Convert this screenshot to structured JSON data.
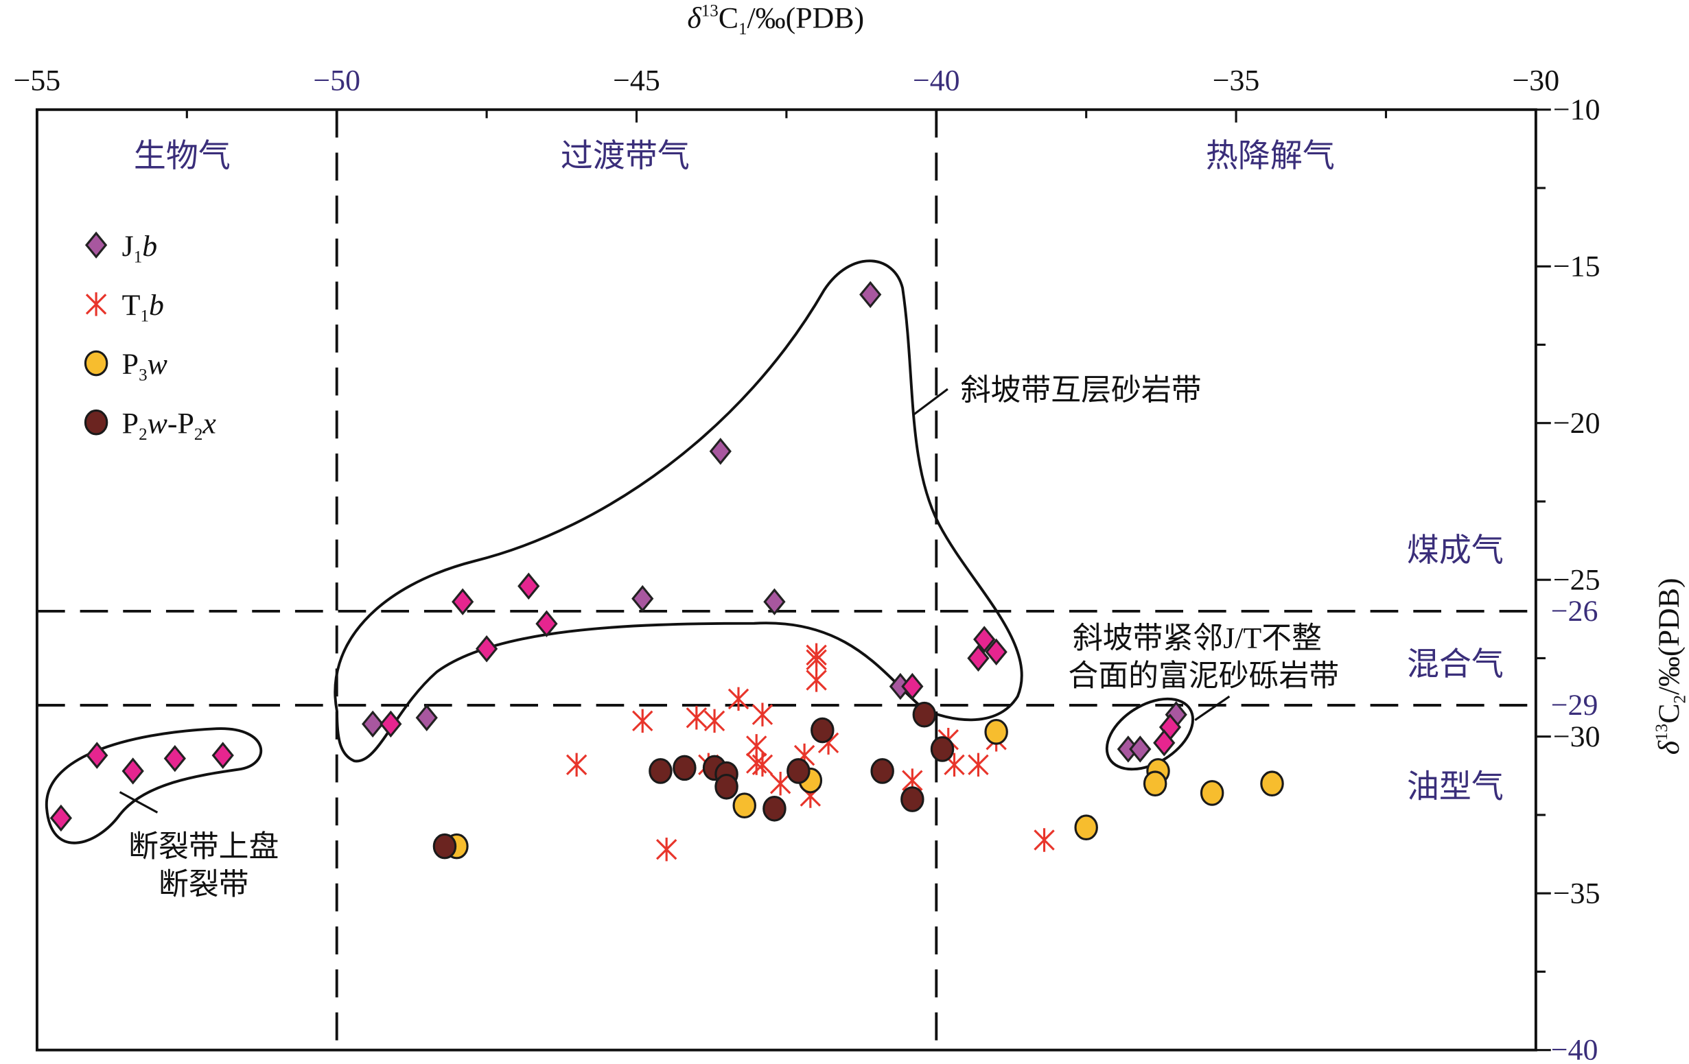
{
  "chart_data": {
    "type": "scatter",
    "xlabel": "δ13C1/‰(PDB)",
    "ylabel": "δ13C2/‰(PDB)",
    "xlim": [
      -55,
      -30
    ],
    "ylim": [
      -40,
      -10
    ],
    "x_axis_position": "top",
    "y_axis_position": "right",
    "x_ticks": [
      -55,
      -50,
      -45,
      -40,
      -35,
      -30
    ],
    "y_ticks": [
      -10,
      -15,
      -20,
      -25,
      -26,
      -29,
      -30,
      -35,
      -40
    ],
    "highlighted_ticks": [
      "-50",
      "-40",
      "-26",
      "-29"
    ],
    "grid": false,
    "divider_lines": {
      "x": [
        -50,
        -40
      ],
      "y": [
        -26,
        -29
      ]
    },
    "legend_placement": "top-left",
    "zone_labels": {
      "biogenic": "生物气",
      "transition": "过渡带气",
      "thermal": "热降解气",
      "coal": "煤成气",
      "mixed": "混合气",
      "oil": "油型气"
    },
    "annotations": {
      "slope_interbed": "斜坡带互层砂岩带",
      "slope_mud_line1": "斜坡带紧邻J/T不整",
      "slope_mud_line2": "合面的富泥砂砾岩带",
      "fault_line1": "断裂带上盘",
      "fault_line2": "断裂带"
    },
    "series": [
      {
        "name": "J1b",
        "label_main": "J",
        "label_sub": "1",
        "label_italic": "b",
        "marker": "diamond",
        "color": "#a8579f",
        "points": [
          [
            -41.1,
            -15.9
          ],
          [
            -43.6,
            -20.9
          ],
          [
            -44.9,
            -25.6
          ],
          [
            -42.7,
            -25.7
          ],
          [
            -49.4,
            -29.6
          ],
          [
            -48.5,
            -29.4
          ],
          [
            -40.6,
            -28.4
          ],
          [
            -36.8,
            -30.4
          ],
          [
            -36.6,
            -30.4
          ],
          [
            -36.0,
            -29.3
          ]
        ]
      },
      {
        "marker": "diamond",
        "color": "#e6258f",
        "points": [
          [
            -54.6,
            -32.6
          ],
          [
            -54.0,
            -30.6
          ],
          [
            -53.4,
            -31.1
          ],
          [
            -52.7,
            -30.7
          ],
          [
            -51.9,
            -30.6
          ],
          [
            -49.1,
            -29.6
          ],
          [
            -47.9,
            -25.7
          ],
          [
            -46.8,
            -25.2
          ],
          [
            -46.5,
            -26.4
          ],
          [
            -47.5,
            -27.2
          ],
          [
            -40.4,
            -28.4
          ],
          [
            -39.2,
            -26.9
          ],
          [
            -39.0,
            -27.3
          ],
          [
            -39.3,
            -27.5
          ],
          [
            -36.1,
            -29.7
          ],
          [
            -36.2,
            -30.2
          ]
        ]
      },
      {
        "name": "T1b",
        "label_main": "T",
        "label_sub": "1",
        "label_italic": "b",
        "marker": "asterisk",
        "color": "#e8352b",
        "points": [
          [
            -46.0,
            -30.9
          ],
          [
            -44.9,
            -29.5
          ],
          [
            -44.5,
            -33.6
          ],
          [
            -44.0,
            -29.4
          ],
          [
            -43.7,
            -29.5
          ],
          [
            -43.8,
            -30.9
          ],
          [
            -43.3,
            -28.8
          ],
          [
            -42.9,
            -29.3
          ],
          [
            -43.0,
            -30.3
          ],
          [
            -43.0,
            -30.85
          ],
          [
            -42.9,
            -30.9
          ],
          [
            -42.6,
            -31.5
          ],
          [
            -42.2,
            -30.6
          ],
          [
            -42.1,
            -31.9
          ],
          [
            -42.0,
            -27.55
          ],
          [
            -42.0,
            -28.2
          ],
          [
            -42.0,
            -27.4
          ],
          [
            -41.8,
            -30.2
          ],
          [
            -40.4,
            -31.4
          ],
          [
            -39.8,
            -30.1
          ],
          [
            -39.7,
            -30.9
          ],
          [
            -39.3,
            -30.9
          ],
          [
            -39.0,
            -30.1
          ],
          [
            -38.2,
            -33.3
          ]
        ]
      },
      {
        "name": "P3w",
        "label_main": "P",
        "label_sub": "3",
        "label_italic": "w",
        "marker": "circle",
        "color": "#f7bd2e",
        "points": [
          [
            -48.0,
            -33.5
          ],
          [
            -43.2,
            -32.2
          ],
          [
            -42.1,
            -31.4
          ],
          [
            -39.0,
            -29.85
          ],
          [
            -36.3,
            -31.1
          ],
          [
            -36.35,
            -31.5
          ],
          [
            -37.5,
            -32.9
          ],
          [
            -35.4,
            -31.8
          ],
          [
            -34.4,
            -31.5
          ]
        ]
      },
      {
        "name": "P2w-P2x",
        "label_main": "P",
        "label_sub": "2",
        "label_italic": "w",
        "label_main2": "-P",
        "label_sub2": "2",
        "label_italic2": "x",
        "marker": "circle",
        "color": "#6b2420",
        "points": [
          [
            -48.2,
            -33.5
          ],
          [
            -44.6,
            -31.1
          ],
          [
            -44.2,
            -31.0
          ],
          [
            -43.7,
            -31.0
          ],
          [
            -43.5,
            -31.2
          ],
          [
            -43.5,
            -31.6
          ],
          [
            -42.7,
            -32.3
          ],
          [
            -42.3,
            -31.1
          ],
          [
            -41.9,
            -29.8
          ],
          [
            -40.9,
            -31.1
          ],
          [
            -40.4,
            -32.0
          ],
          [
            -40.2,
            -29.3
          ],
          [
            -39.9,
            -30.4
          ]
        ]
      }
    ]
  }
}
